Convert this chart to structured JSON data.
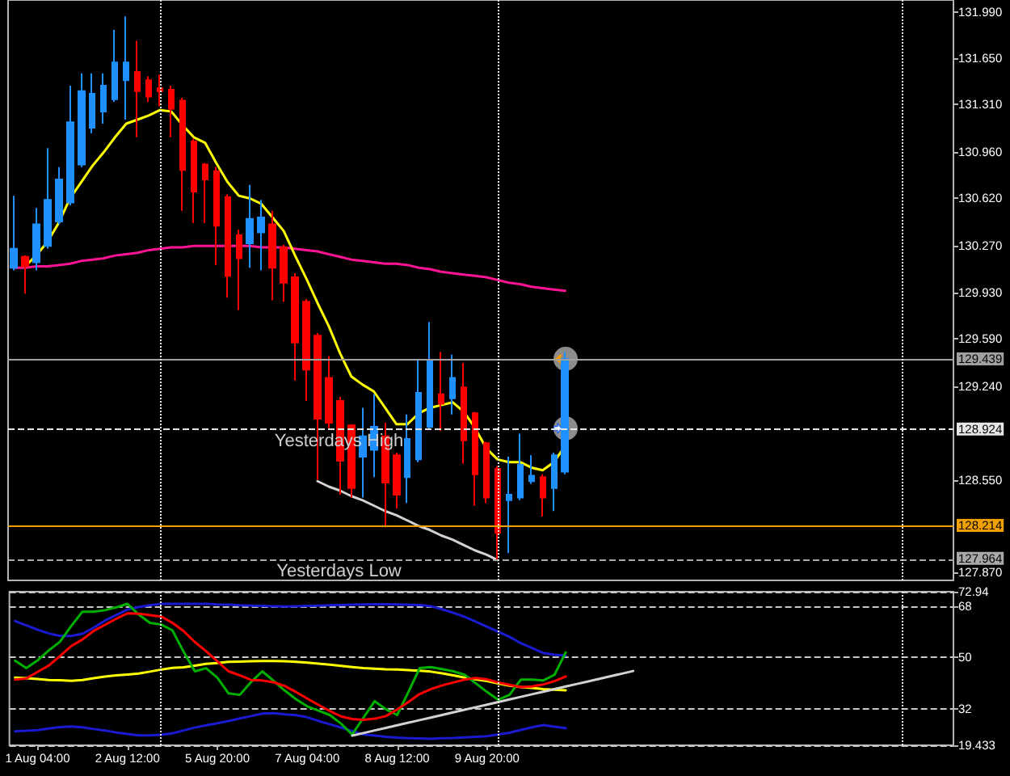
{
  "chart_data": [
    {
      "type": "candlestick",
      "grid": "x",
      "categories": [
        null,
        null,
        null,
        null,
        null,
        null,
        null,
        null,
        null,
        null,
        null,
        null,
        null,
        null,
        null,
        null,
        null,
        null,
        null,
        null,
        null,
        null,
        null,
        null,
        null,
        null,
        null,
        null,
        null,
        null,
        null,
        null,
        null,
        null,
        null,
        null,
        null,
        null,
        null,
        null,
        null,
        null,
        null,
        null,
        null,
        null,
        null,
        null,
        null,
        null,
        null,
        null,
        null,
        null,
        null,
        null,
        null,
        null,
        null,
        null,
        null,
        null,
        null,
        null,
        null,
        null,
        null,
        null,
        null,
        null,
        null,
        null,
        null,
        null,
        null,
        null,
        null,
        null,
        null,
        null,
        null,
        null,
        null,
        null
      ],
      "ohlc": [
        [
          130.11,
          130.64,
          130.09,
          130.25
        ],
        [
          130.19,
          130.2,
          129.92,
          130.12
        ],
        [
          130.15,
          130.55,
          130.09,
          130.43
        ],
        [
          130.27,
          130.99,
          130.25,
          130.61
        ],
        [
          130.45,
          130.85,
          130.43,
          130.76
        ],
        [
          130.59,
          131.45,
          130.57,
          131.18
        ],
        [
          130.87,
          131.54,
          130.85,
          131.41
        ],
        [
          131.14,
          131.54,
          131.1,
          131.39
        ],
        [
          131.26,
          131.54,
          131.17,
          131.45
        ],
        [
          131.35,
          131.86,
          131.33,
          131.62
        ],
        [
          131.49,
          131.96,
          131.2,
          131.62
        ],
        [
          131.55,
          131.78,
          131.07,
          131.41
        ],
        [
          131.49,
          131.52,
          131.33,
          131.37
        ],
        [
          131.43,
          131.53,
          131.3,
          131.41
        ],
        [
          131.42,
          131.45,
          131.07,
          131.28
        ],
        [
          131.34,
          131.36,
          130.53,
          130.83
        ],
        [
          131.04,
          131.06,
          130.44,
          130.67
        ],
        [
          130.87,
          130.88,
          130.44,
          130.76
        ],
        [
          130.82,
          130.85,
          130.13,
          130.42
        ],
        [
          130.63,
          130.65,
          129.89,
          130.05
        ],
        [
          130.35,
          130.39,
          129.8,
          130.18
        ],
        [
          130.29,
          130.72,
          130.11,
          130.47
        ],
        [
          130.37,
          130.61,
          130.09,
          130.48
        ],
        [
          130.43,
          130.53,
          129.87,
          130.11
        ],
        [
          130.26,
          130.28,
          129.86,
          130
        ],
        [
          130.04,
          130.07,
          129.28,
          129.56
        ],
        [
          129.86,
          129.88,
          129.13,
          129.36
        ],
        [
          129.61,
          129.63,
          128.55,
          129
        ],
        [
          129.3,
          129.46,
          128.93,
          128.97
        ],
        [
          129.13,
          129.16,
          128.44,
          128.69
        ],
        [
          128.95,
          128.96,
          128.42,
          128.49
        ],
        [
          128.72,
          129.08,
          128.42,
          128.87
        ],
        [
          128.77,
          129.18,
          128.57,
          128.94
        ],
        [
          128.87,
          128.97,
          128.2,
          128.53
        ],
        [
          128.73,
          128.75,
          128.34,
          128.44
        ],
        [
          128.57,
          129.03,
          128.38,
          128.85
        ],
        [
          128.7,
          129.44,
          128.68,
          129.19
        ],
        [
          128.94,
          129.71,
          128.92,
          129.43
        ],
        [
          129.18,
          129.49,
          128.91,
          129.11
        ],
        [
          129.15,
          129.47,
          129.03,
          129.3
        ],
        [
          129.23,
          129.41,
          128.67,
          128.84
        ],
        [
          129.04,
          129.05,
          128.36,
          128.59
        ],
        [
          128.82,
          128.83,
          128.38,
          128.42
        ],
        [
          128.63,
          128.65,
          127.96,
          128.16
        ],
        [
          128.4,
          128.72,
          128.01,
          128.44
        ],
        [
          128.42,
          128.89,
          128.4,
          128.66
        ],
        [
          128.54,
          128.73,
          128.52,
          128.58
        ],
        [
          128.57,
          128.59,
          128.28,
          128.42
        ],
        [
          128.49,
          128.75,
          128.32,
          128.73
        ],
        [
          128.61,
          129.49,
          128.59,
          129.439
        ],
        null,
        null,
        null,
        null,
        null,
        null,
        null,
        null,
        null,
        null,
        null,
        null,
        null,
        null,
        null,
        null,
        null,
        null,
        null,
        null,
        null,
        null,
        null,
        null,
        null,
        null,
        null,
        null,
        null,
        null,
        null,
        null,
        null,
        null
      ],
      "colors": [
        "#1e90ff",
        "#ff0000",
        "#1e90ff",
        "#1e90ff",
        "#1e90ff",
        "#1e90ff",
        "#1e90ff",
        "#1e90ff",
        "#1e90ff",
        "#1e90ff",
        "#1e90ff",
        "#ff0000",
        "#ff0000",
        "#ff0000",
        "#ff0000",
        "#ff0000",
        "#ff0000",
        "#ff0000",
        "#ff0000",
        "#ff0000",
        "#ff0000",
        "#1e90ff",
        "#1e90ff",
        "#ff0000",
        "#ff0000",
        "#ff0000",
        "#ff0000",
        "#ff0000",
        "#ff0000",
        "#ff0000",
        "#ff0000",
        "#1e90ff",
        "#1e90ff",
        "#ff0000",
        "#ff0000",
        "#1e90ff",
        "#1e90ff",
        "#1e90ff",
        "#ff0000",
        "#1e90ff",
        "#ff0000",
        "#ff0000",
        "#ff0000",
        "#ff0000",
        "#1e90ff",
        "#1e90ff",
        "#1e90ff",
        "#ff0000",
        "#1e90ff",
        "#1e90ff",
        null,
        null,
        null,
        null,
        null,
        null,
        null,
        null,
        null,
        null,
        null,
        null,
        null,
        null,
        null,
        null,
        null,
        null,
        null,
        null,
        null,
        null,
        null,
        null,
        null,
        null,
        null,
        null,
        null,
        null,
        null,
        null,
        null,
        null
      ],
      "series": [
        {
          "type": "line",
          "color": "#ff1493",
          "values": [
            130.11,
            130.11,
            130.12,
            130.12,
            130.13,
            130.14,
            130.16,
            130.17,
            130.18,
            130.2,
            130.21,
            130.22,
            130.24,
            130.25,
            130.26,
            130.26,
            130.27,
            130.27,
            130.27,
            130.27,
            130.27,
            130.27,
            130.26,
            130.26,
            130.26,
            130.25,
            130.24,
            130.23,
            130.21,
            130.19,
            130.17,
            130.16,
            130.15,
            130.14,
            130.14,
            130.13,
            130.11,
            130.1,
            130.08,
            130.07,
            130.06,
            130.05,
            130.04,
            130.02,
            130,
            129.99,
            129.97,
            129.96,
            129.95,
            129.94,
            null,
            null,
            null,
            null,
            null,
            null,
            null,
            null,
            null,
            null,
            null,
            null,
            null,
            null,
            null,
            null,
            null,
            null,
            null,
            null,
            null,
            null,
            null,
            null,
            null,
            null,
            null,
            null,
            null,
            null,
            null,
            null,
            null,
            null
          ]
        },
        {
          "type": "line",
          "color": "#ffff00",
          "values": [
            null,
            130.12,
            130.2,
            130.3,
            130.44,
            130.62,
            130.74,
            130.86,
            130.96,
            131.07,
            131.17,
            131.2,
            131.23,
            131.27,
            131.26,
            131.16,
            131.07,
            131.03,
            130.88,
            130.74,
            130.64,
            130.62,
            130.58,
            130.48,
            130.38,
            130.2,
            130.03,
            129.85,
            129.68,
            129.48,
            129.31,
            129.25,
            129.2,
            129.08,
            128.96,
            128.96,
            129.04,
            129.08,
            129.1,
            129.12,
            129.05,
            128.93,
            128.78,
            128.7,
            128.68,
            128.68,
            128.64,
            128.62,
            128.68,
            128.8,
            null,
            null,
            null,
            null,
            null,
            null,
            null,
            null,
            null,
            null,
            null,
            null,
            null,
            null,
            null,
            null,
            null,
            null,
            null,
            null,
            null,
            null,
            null,
            null,
            null,
            null,
            null,
            null,
            null,
            null,
            null,
            null,
            null,
            null
          ]
        },
        {
          "type": "line",
          "color": "#d2d2d2",
          "values": [
            null,
            null,
            null,
            null,
            null,
            null,
            null,
            null,
            null,
            null,
            null,
            null,
            null,
            null,
            null,
            null,
            null,
            null,
            null,
            null,
            null,
            null,
            null,
            null,
            null,
            null,
            null,
            128.54,
            128.5,
            128.47,
            128.43,
            128.4,
            128.36,
            128.32,
            128.29,
            128.25,
            128.21,
            128.18,
            128.14,
            128.11,
            128.07,
            128.03,
            128,
            127.96,
            null,
            null,
            null,
            null,
            null,
            null,
            null,
            null,
            null,
            null,
            null,
            null,
            null,
            null,
            null,
            null,
            null,
            null,
            null,
            null,
            null,
            null,
            null,
            null,
            null,
            null,
            null,
            null,
            null,
            null,
            null,
            null,
            null,
            null,
            null,
            null,
            null,
            null,
            null,
            null
          ]
        }
      ],
      "ref_lines": [
        {
          "axis": "y",
          "value": 129.439,
          "label": "129.439",
          "color": "#a0a0a0",
          "line_style": "solid"
        },
        {
          "axis": "y",
          "value": 128.924,
          "label": "128.924",
          "color": "#e6e6e6",
          "line_style": "dashed"
        },
        {
          "axis": "y",
          "value": 128.214,
          "label": "128.214",
          "color": "#f0a000",
          "line_style": "solid"
        },
        {
          "axis": "y",
          "value": 127.964,
          "label": "127.964",
          "color": "#a8a8a8",
          "line_style": "dashed"
        }
      ],
      "annotations": [
        {
          "text": "Yesterdays High",
          "y": 128.924
        },
        {
          "text": "Yesterdays Low",
          "y": 127.964
        }
      ],
      "ylim": [
        127.81,
        132.08
      ],
      "yticks": [
        {
          "value": 131.99,
          "label": "131.990"
        },
        {
          "value": 131.65,
          "label": "131.650"
        },
        {
          "value": 131.31,
          "label": "131.310"
        },
        {
          "value": 130.96,
          "label": "130.960"
        },
        {
          "value": 130.62,
          "label": "130.620"
        },
        {
          "value": 130.27,
          "label": "130.270"
        },
        {
          "value": 129.93,
          "label": "129.930"
        },
        {
          "value": 129.59,
          "label": "129.590"
        },
        {
          "value": 129.24,
          "label": "129.240"
        },
        {
          "value": 128.55,
          "label": "128.550"
        },
        {
          "value": 127.87,
          "label": "127.870"
        }
      ],
      "tick_labels": "y"
    },
    {
      "type": "line",
      "grid": true,
      "categories": [
        null,
        null,
        "1 Aug 04:00",
        null,
        null,
        null,
        null,
        null,
        null,
        null,
        "2 Aug 12:00",
        null,
        null,
        null,
        null,
        null,
        null,
        null,
        "5 Aug 20:00",
        null,
        null,
        null,
        null,
        null,
        null,
        null,
        "7 Aug 04:00",
        null,
        null,
        null,
        null,
        null,
        null,
        null,
        "8 Aug 12:00",
        null,
        null,
        null,
        null,
        null,
        null,
        null,
        "9 Aug 20:00",
        null,
        null,
        null,
        null,
        null,
        null,
        null,
        null,
        null,
        null,
        null,
        null,
        null,
        null,
        null,
        null,
        null,
        null,
        null,
        null,
        null,
        null,
        null,
        null,
        null,
        null,
        null,
        null,
        null,
        null,
        null,
        null,
        null,
        null,
        null,
        null,
        null,
        null,
        null,
        null,
        null
      ],
      "series": [
        {
          "color": "#1a1ad0",
          "values": [
            62.7,
            61.2,
            59.7,
            58.4,
            57.5,
            57.5,
            58.3,
            60.4,
            62.9,
            64.8,
            66.7,
            67.6,
            68.2,
            68.7,
            68.7,
            68.7,
            68.7,
            68.7,
            68.5,
            68.4,
            68.2,
            68.1,
            68,
            67.9,
            67.8,
            67.9,
            68,
            68.1,
            68.2,
            68.3,
            68.4,
            68.5,
            68.6,
            68.6,
            68.5,
            68.4,
            68.3,
            67.9,
            66.8,
            65.6,
            64.2,
            62.5,
            60.7,
            59,
            57.2,
            55,
            53.3,
            51.6,
            51,
            50.7,
            null,
            null,
            null,
            null,
            null,
            null,
            null,
            null,
            null,
            null,
            null,
            null,
            null,
            null,
            null,
            null,
            null,
            null,
            null,
            null,
            null,
            null,
            null,
            null,
            null,
            null,
            null,
            null,
            null,
            null,
            null,
            null,
            null,
            null
          ]
        },
        {
          "color": "#1a1ad0",
          "values": [
            24.3,
            24.5,
            24.7,
            25.3,
            25.8,
            26,
            25.7,
            25.1,
            24.6,
            23.9,
            23.4,
            22.9,
            22.9,
            23.1,
            23.6,
            24.6,
            25.6,
            26.4,
            27.1,
            27.9,
            28.8,
            29.6,
            30.5,
            30.6,
            30.2,
            29.9,
            29.2,
            27.9,
            26.8,
            25.6,
            24.4,
            23.2,
            22.8,
            22.4,
            22.1,
            21.9,
            21.8,
            21.7,
            21.9,
            22,
            22.2,
            22.4,
            22.6,
            23.2,
            23.8,
            24.8,
            25.7,
            26.5,
            25.9,
            25.4,
            null,
            null,
            null,
            null,
            null,
            null,
            null,
            null,
            null,
            null,
            null,
            null,
            null,
            null,
            null,
            null,
            null,
            null,
            null,
            null,
            null,
            null,
            null,
            null,
            null,
            null,
            null,
            null,
            null,
            null,
            null,
            null,
            null,
            null
          ]
        },
        {
          "color": "#ffff00",
          "values": [
            43,
            42.8,
            42.5,
            42.2,
            42.1,
            41.9,
            42.2,
            42.8,
            43.4,
            43.8,
            44.1,
            44.4,
            45.1,
            45.8,
            46.4,
            46.6,
            47.2,
            47.8,
            48.1,
            48.5,
            48.6,
            48.7,
            48.8,
            48.8,
            48.7,
            48.5,
            48.2,
            47.9,
            47.5,
            47.1,
            46.7,
            46.3,
            46.1,
            45.9,
            45.8,
            45.6,
            45.4,
            45.1,
            44.5,
            43.8,
            43,
            42.4,
            41.8,
            41,
            40.2,
            39.7,
            39.4,
            39,
            38.8,
            38.6,
            null,
            null,
            null,
            null,
            null,
            null,
            null,
            null,
            null,
            null,
            null,
            null,
            null,
            null,
            null,
            null,
            null,
            null,
            null,
            null,
            null,
            null,
            null,
            null,
            null,
            null,
            null,
            null,
            null,
            null,
            null,
            null,
            null,
            null
          ]
        },
        {
          "color": "#00b000",
          "values": [
            48.9,
            46.3,
            49,
            52.5,
            55.5,
            61,
            66,
            66,
            66.5,
            67.5,
            68.7,
            65,
            62.1,
            61.5,
            59.5,
            52,
            45.2,
            46.3,
            43,
            37.5,
            37,
            41.5,
            45.2,
            41.9,
            38.5,
            35.5,
            33,
            31.5,
            30,
            27,
            23.2,
            29,
            34.8,
            32,
            30,
            38,
            46.3,
            46.7,
            46,
            45.2,
            44,
            41,
            38,
            35.3,
            37,
            42.3,
            42.3,
            42,
            44,
            51.8,
            null,
            null,
            null,
            null,
            null,
            null,
            null,
            null,
            null,
            null,
            null,
            null,
            null,
            null,
            null,
            null,
            null,
            null,
            null,
            null,
            null,
            null,
            null,
            null,
            null,
            null,
            null,
            null,
            null,
            null,
            null,
            null,
            null,
            null
          ]
        },
        {
          "color": "#ff0000",
          "values": [
            42.3,
            42.7,
            45,
            47.2,
            50.5,
            54,
            56.3,
            59.3,
            61.4,
            63.5,
            65.4,
            65.3,
            64.8,
            64.3,
            62.1,
            59.2,
            55.4,
            52.2,
            48.7,
            45.2,
            43.8,
            42.2,
            42,
            41.4,
            40.1,
            38,
            35.7,
            33.5,
            31.4,
            29.5,
            28.6,
            28.3,
            28.7,
            29.6,
            31.9,
            34.5,
            37.3,
            39,
            40.3,
            41.3,
            42.3,
            42.9,
            42.4,
            41.3,
            40.5,
            39.7,
            39.9,
            40.6,
            41.8,
            43.4,
            null,
            null,
            null,
            null,
            null,
            null,
            null,
            null,
            null,
            null,
            null,
            null,
            null,
            null,
            null,
            null,
            null,
            null,
            null,
            null,
            null,
            null,
            null,
            null,
            null,
            null,
            null,
            null,
            null,
            null,
            null,
            null,
            null,
            null
          ]
        },
        {
          "color": "#d2d2d2",
          "values": [
            null,
            null,
            null,
            null,
            null,
            null,
            null,
            null,
            null,
            null,
            null,
            null,
            null,
            null,
            null,
            null,
            null,
            null,
            null,
            null,
            null,
            null,
            null,
            null,
            null,
            null,
            null,
            null,
            null,
            null,
            22.8,
            23.7,
            24.6,
            25.5,
            26.4,
            27.3,
            28.2,
            29.1,
            30,
            30.9,
            31.8,
            32.7,
            33.6,
            34.5,
            35.4,
            36.3,
            37.2,
            38.1,
            39,
            39.9,
            40.8,
            41.7,
            42.6,
            43.5,
            44.4,
            45.3,
            null,
            null,
            null,
            null,
            null,
            null,
            null,
            null,
            null,
            null,
            null,
            null,
            null,
            null,
            null,
            null,
            null,
            null,
            null,
            null,
            null,
            null,
            null,
            null,
            null,
            null,
            null,
            null
          ]
        }
      ],
      "ylim": [
        19.433,
        72.94
      ],
      "yticks": [
        19.433,
        32,
        50,
        68,
        72.94
      ]
    }
  ]
}
